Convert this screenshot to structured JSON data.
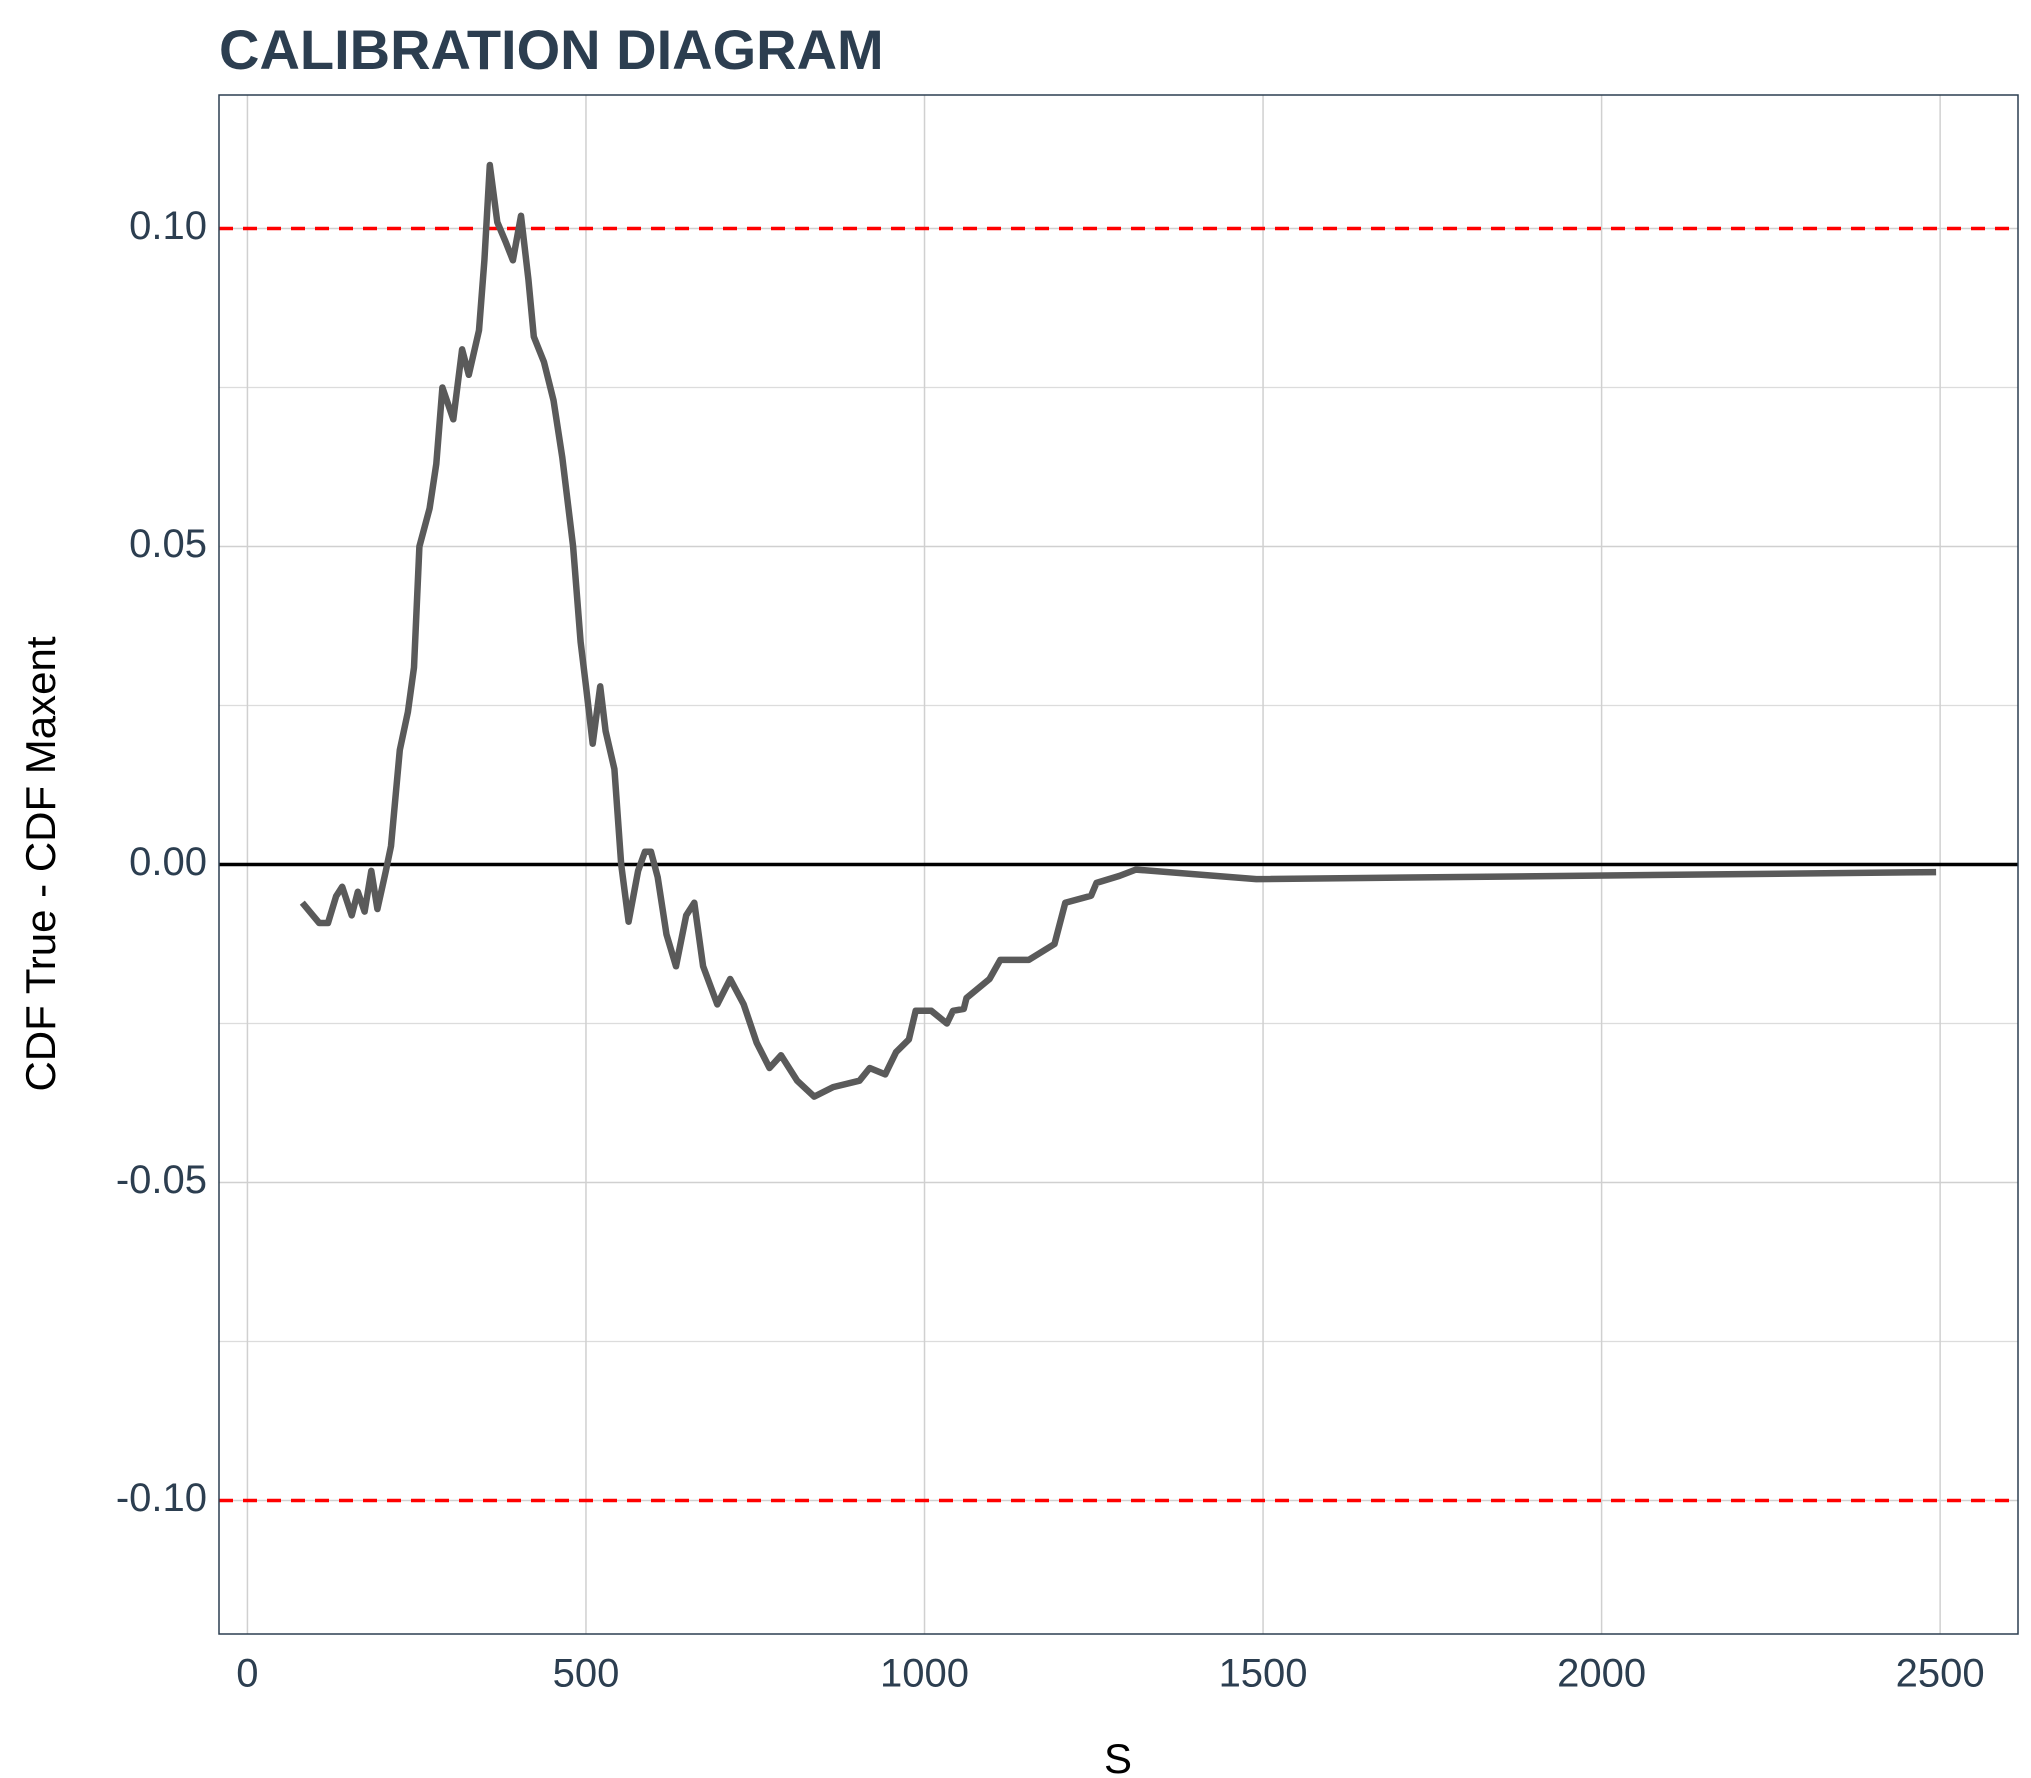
{
  "chart_data": {
    "type": "line",
    "title": "CALIBRATION DIAGRAM",
    "x_label": "S",
    "y_label": "CDF True - CDF Maxent",
    "xlim": [
      -42,
      2615
    ],
    "ylim": [
      -0.121,
      0.121
    ],
    "xticks": [
      0,
      500,
      1000,
      1500,
      2000,
      2500
    ],
    "yticks": [
      {
        "value": -0.1,
        "label": "-0.10"
      },
      {
        "value": -0.05,
        "label": "-0.05"
      },
      {
        "value": 0,
        "label": "0.00"
      },
      {
        "value": 0.05,
        "label": "0.05"
      },
      {
        "value": 0.1,
        "label": "0.10"
      }
    ],
    "y_minor_grid": [
      -0.075,
      -0.025,
      0.025,
      0.075
    ],
    "grid": true,
    "hlines": [
      {
        "value": 0.1,
        "color": "#ff0000",
        "dashed": true
      },
      {
        "value": -0.1,
        "color": "#ff0000",
        "dashed": true
      },
      {
        "value": 0,
        "color": "#000000",
        "dashed": false
      }
    ],
    "series": [
      {
        "color": "#5a5a5a",
        "x": [
          81,
          106,
          119,
          131,
          140,
          154,
          163,
          173,
          183,
          192,
          204,
          212,
          225,
          237,
          246,
          254,
          269,
          279,
          288,
          304,
          317,
          327,
          342,
          350,
          358,
          369,
          381,
          392,
          404,
          415,
          423,
          438,
          452,
          465,
          481,
          492,
          500,
          510,
          521,
          529,
          542,
          552,
          563,
          577,
          587,
          596,
          606,
          619,
          633,
          648,
          660,
          673,
          694,
          713,
          733,
          752,
          771,
          788,
          812,
          837,
          865,
          904,
          919,
          942,
          958,
          977,
          987,
          1010,
          1033,
          1042,
          1058,
          1062,
          1096,
          1112,
          1154,
          1192,
          1208,
          1246,
          1254,
          1288,
          1312,
          1490,
          2494
        ],
        "values": [
          -0.006,
          -0.0092,
          -0.0092,
          -0.005,
          -0.0035,
          -0.008,
          -0.0043,
          -0.0074,
          -0.001,
          -0.007,
          -0.0012,
          0.0029,
          0.018,
          0.024,
          0.031,
          0.05,
          0.056,
          0.063,
          0.075,
          0.07,
          0.081,
          0.077,
          0.084,
          0.095,
          0.11,
          0.101,
          0.098,
          0.095,
          0.102,
          0.092,
          0.083,
          0.079,
          0.073,
          0.064,
          0.05,
          0.035,
          0.028,
          0.019,
          0.028,
          0.021,
          0.015,
          0.0,
          -0.009,
          -0.001,
          0.002,
          0.002,
          -0.002,
          -0.011,
          -0.016,
          -0.008,
          -0.006,
          -0.016,
          -0.022,
          -0.018,
          -0.022,
          -0.028,
          -0.032,
          -0.03,
          -0.034,
          -0.0365,
          -0.035,
          -0.034,
          -0.032,
          -0.033,
          -0.0295,
          -0.0275,
          -0.023,
          -0.023,
          -0.025,
          -0.023,
          -0.0227,
          -0.021,
          -0.018,
          -0.015,
          -0.015,
          -0.0125,
          -0.006,
          -0.0049,
          -0.0029,
          -0.0018,
          -0.0008,
          -0.0023,
          -0.0012
        ]
      }
    ]
  }
}
